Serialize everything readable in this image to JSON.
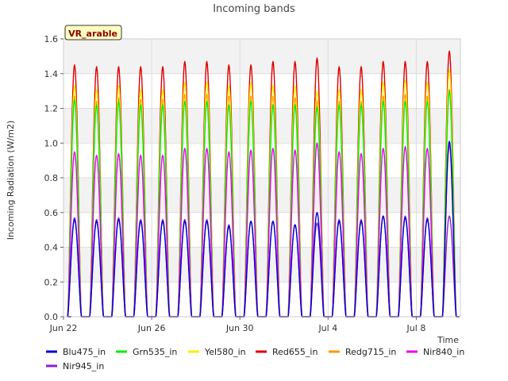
{
  "chart_data": {
    "type": "line",
    "title": "Incoming bands",
    "ylabel": "Incoming Radiation (W/m2)",
    "xlabel": "Time",
    "site_label": "VR_arable",
    "ylim": [
      0,
      1.6
    ],
    "xlim": [
      "2023-06-22",
      "2023-07-10"
    ],
    "yticks": [
      "0.0",
      "0.2",
      "0.4",
      "0.6",
      "0.8",
      "1.0",
      "1.2",
      "1.4",
      "1.6"
    ],
    "xticks": [
      {
        "label": "Jun 22",
        "date": "2023-06-22"
      },
      {
        "label": "Jun 26",
        "date": "2023-06-26"
      },
      {
        "label": "Jun 30",
        "date": "2023-06-30"
      },
      {
        "label": "Jul 4",
        "date": "2023-07-04"
      },
      {
        "label": "Jul 8",
        "date": "2023-07-08"
      }
    ],
    "grid": true,
    "legend_position": "bottom",
    "days": [
      "2023-06-22",
      "2023-06-23",
      "2023-06-24",
      "2023-06-25",
      "2023-06-26",
      "2023-06-27",
      "2023-06-28",
      "2023-06-29",
      "2023-06-30",
      "2023-07-01",
      "2023-07-02",
      "2023-07-03",
      "2023-07-04",
      "2023-07-05",
      "2023-07-06",
      "2023-07-07",
      "2023-07-08",
      "2023-07-09"
    ],
    "series": [
      {
        "name": "Blu475_in",
        "color": "#0000cc",
        "daily_peak": [
          0.56,
          0.55,
          0.56,
          0.55,
          0.55,
          0.55,
          0.55,
          0.52,
          0.55,
          0.55,
          0.53,
          0.6,
          0.55,
          0.55,
          0.58,
          0.57,
          0.56,
          1.01
        ]
      },
      {
        "name": "Grn535_in",
        "color": "#00ee00",
        "daily_peak": [
          1.25,
          1.22,
          1.24,
          1.22,
          1.22,
          1.24,
          1.24,
          1.22,
          1.24,
          1.22,
          1.22,
          1.21,
          1.22,
          1.22,
          1.24,
          1.24,
          1.24,
          1.3
        ]
      },
      {
        "name": "Yel580_in",
        "color": "#ffee00",
        "daily_peak": [
          1.33,
          1.31,
          1.33,
          1.31,
          1.31,
          1.35,
          1.35,
          1.33,
          1.35,
          1.33,
          1.33,
          1.3,
          1.31,
          1.31,
          1.35,
          1.36,
          1.35,
          1.42
        ]
      },
      {
        "name": "Red655_in",
        "color": "#dd0000",
        "daily_peak": [
          1.45,
          1.44,
          1.44,
          1.44,
          1.44,
          1.47,
          1.47,
          1.45,
          1.45,
          1.47,
          1.47,
          1.49,
          1.44,
          1.44,
          1.47,
          1.47,
          1.47,
          1.53
        ]
      },
      {
        "name": "Redg715_in",
        "color": "#ff9900",
        "daily_peak": [
          1.27,
          1.24,
          1.26,
          1.25,
          1.25,
          1.28,
          1.28,
          1.27,
          1.27,
          1.27,
          1.26,
          1.24,
          1.24,
          1.24,
          1.27,
          1.28,
          1.27,
          1.31
        ]
      },
      {
        "name": "Nir840_in",
        "color": "#ee00ee",
        "daily_peak": [
          0.95,
          0.93,
          0.94,
          0.93,
          0.93,
          0.97,
          0.97,
          0.95,
          0.96,
          0.97,
          0.96,
          1.0,
          0.95,
          0.94,
          0.97,
          0.98,
          0.97,
          0.99
        ]
      },
      {
        "name": "Nir945_in",
        "color": "#8822cc",
        "daily_peak": [
          0.57,
          0.56,
          0.57,
          0.56,
          0.56,
          0.56,
          0.56,
          0.53,
          0.55,
          0.55,
          0.53,
          0.54,
          0.56,
          0.56,
          0.58,
          0.58,
          0.57,
          0.58
        ]
      }
    ]
  }
}
